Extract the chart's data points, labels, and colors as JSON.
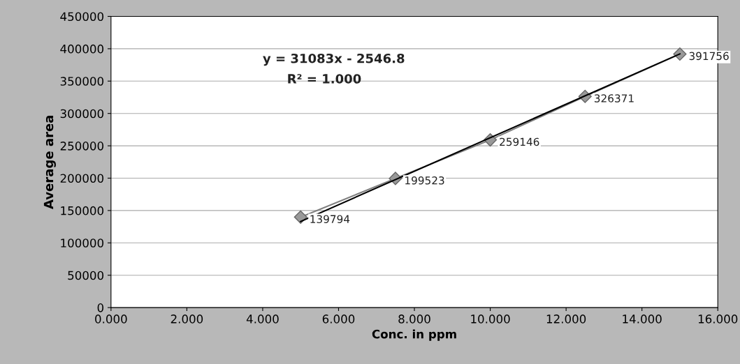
{
  "chart_data": {
    "type": "line",
    "xlabel": "Conc. in ppm",
    "ylabel": "Average area",
    "xlim": [
      0,
      16
    ],
    "xticks": [
      {
        "value": 0,
        "label": "0.000"
      },
      {
        "value": 2,
        "label": "2.000"
      },
      {
        "value": 4,
        "label": "4.000"
      },
      {
        "value": 6,
        "label": "6.000"
      },
      {
        "value": 8,
        "label": "8.000"
      },
      {
        "value": 10,
        "label": "10.000"
      },
      {
        "value": 12,
        "label": "12.000"
      },
      {
        "value": 14,
        "label": "14.000"
      },
      {
        "value": 16,
        "label": "16.000"
      }
    ],
    "ylim": [
      0,
      450000
    ],
    "yticks": [
      0,
      50000,
      100000,
      150000,
      200000,
      250000,
      300000,
      350000,
      400000,
      450000
    ],
    "grid": "y",
    "legend": false,
    "series": [
      {
        "color": "#7f7f7f",
        "x": [
          5,
          7.5,
          10,
          12.5,
          15
        ],
        "values": [
          139794,
          199523,
          259146,
          326371,
          391756
        ],
        "marker": "diamond",
        "value_labels": [
          "139794",
          "199523",
          "259146",
          "326371",
          "391756"
        ]
      },
      {
        "type": "line",
        "color": "#000000",
        "x": [
          5,
          15
        ],
        "values": [
          133000,
          392000
        ],
        "marker": "none"
      }
    ],
    "annotations": [
      "y = 31083x - 2546.8",
      "R² = 1.000"
    ]
  }
}
